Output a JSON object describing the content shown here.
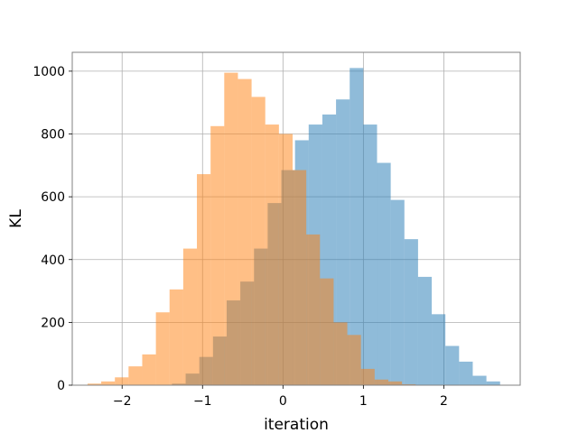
{
  "chart_data": {
    "type": "bar",
    "subtype": "overlapping-histogram",
    "title": "",
    "xlabel": "iteration",
    "ylabel": "KL",
    "xlim": [
      -2.62,
      2.95
    ],
    "ylim": [
      0,
      1060
    ],
    "xticks": [
      -2,
      -1,
      0,
      1,
      2
    ],
    "xtick_labels": [
      "−2",
      "−1",
      "0",
      "1",
      "2"
    ],
    "yticks": [
      0,
      200,
      400,
      600,
      800,
      1000
    ],
    "ytick_labels": [
      "0",
      "200",
      "400",
      "600",
      "800",
      "1000"
    ],
    "grid": true,
    "legend": "none",
    "series": [
      {
        "color": "#1f77b4",
        "opacity": 0.5,
        "bin_edges": [
          -1.38,
          -1.21,
          -1.04,
          -0.87,
          -0.7,
          -0.53,
          -0.36,
          -0.19,
          -0.02,
          0.15,
          0.32,
          0.49,
          0.66,
          0.83,
          1.0,
          1.17,
          1.34,
          1.51,
          1.68,
          1.85,
          2.02,
          2.19,
          2.36,
          2.53,
          2.7
        ],
        "values": [
          5,
          37,
          90,
          155,
          270,
          330,
          435,
          580,
          685,
          780,
          830,
          862,
          910,
          1010,
          830,
          708,
          590,
          465,
          345,
          226,
          125,
          75,
          30,
          12
        ]
      },
      {
        "color": "#ff7f0e",
        "opacity": 0.5,
        "bin_edges": [
          -2.43,
          -2.26,
          -2.09,
          -1.92,
          -1.75,
          -1.58,
          -1.41,
          -1.24,
          -1.07,
          -0.9,
          -0.73,
          -0.56,
          -0.39,
          -0.22,
          -0.05,
          0.12,
          0.29,
          0.46,
          0.63,
          0.8,
          0.97,
          1.14,
          1.31,
          1.48,
          1.65
        ],
        "values": [
          5,
          12,
          25,
          60,
          98,
          232,
          305,
          435,
          672,
          825,
          995,
          975,
          918,
          830,
          800,
          685,
          480,
          340,
          200,
          160,
          52,
          18,
          12,
          3
        ]
      }
    ]
  }
}
